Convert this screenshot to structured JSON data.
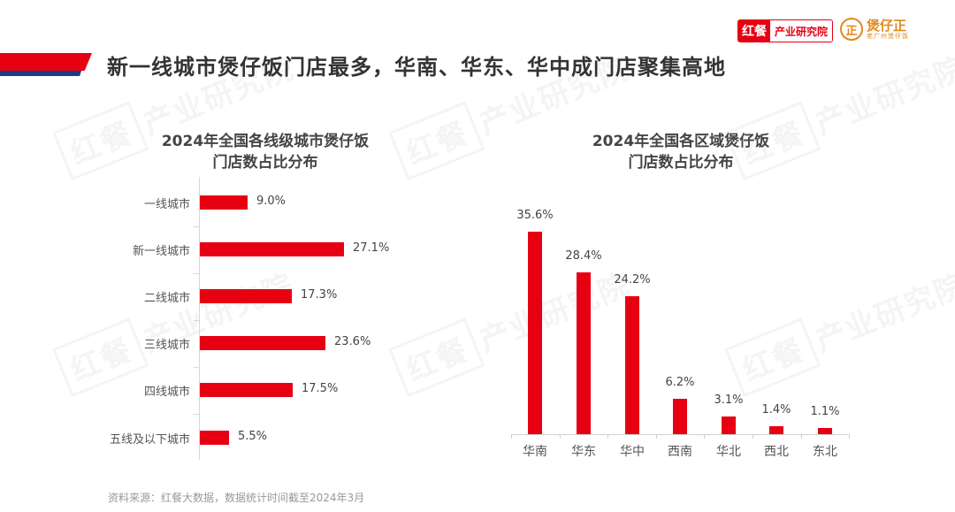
{
  "header": {
    "title": "新一线城市煲仔饭门店最多，华南、华东、华中成门店聚集高地",
    "logo_hongcan": {
      "mark": "红餐",
      "text": "产业研究院"
    },
    "logo_baozaiwang": {
      "mark": "正",
      "name": "煲仔正",
      "sub": "老广州煲仔饭"
    }
  },
  "watermark": {
    "mark": "红餐",
    "text": "产业研究院"
  },
  "colors": {
    "bar": "#e60012",
    "ribbon_red": "#e60012",
    "ribbon_blue": "#1f3a8a",
    "logo_orange": "#e08a1e"
  },
  "footer": {
    "source": "资料来源：红餐大数据，数据统计时间截至2024年3月"
  },
  "chart_data": [
    {
      "type": "bar",
      "orientation": "horizontal",
      "title": "2024年全国各线级城市煲仔饭门店数占比分布",
      "title_lines": [
        "2024年全国各线级城市煲仔饭",
        "门店数占比分布"
      ],
      "categories": [
        "一线城市",
        "新一线城市",
        "二线城市",
        "三线城市",
        "四线城市",
        "五线及以下城市"
      ],
      "values": [
        9.0,
        27.1,
        17.3,
        23.6,
        17.5,
        5.5
      ],
      "labels": [
        "9.0%",
        "27.1%",
        "17.3%",
        "23.6%",
        "17.5%",
        "5.5%"
      ],
      "unit": "%",
      "xlabel": "",
      "ylabel": "",
      "grid": false
    },
    {
      "type": "bar",
      "orientation": "vertical",
      "title": "2024年全国各区域煲仔饭门店数占比分布",
      "title_lines": [
        "2024年全国各区域煲仔饭",
        "门店数占比分布"
      ],
      "categories": [
        "华南",
        "华东",
        "华中",
        "西南",
        "华北",
        "西北",
        "东北"
      ],
      "values": [
        35.6,
        28.4,
        24.2,
        6.2,
        3.1,
        1.4,
        1.1
      ],
      "labels": [
        "35.6%",
        "28.4%",
        "24.2%",
        "6.2%",
        "3.1%",
        "1.4%",
        "1.1%"
      ],
      "unit": "%",
      "xlabel": "",
      "ylabel": "",
      "grid": false
    }
  ]
}
